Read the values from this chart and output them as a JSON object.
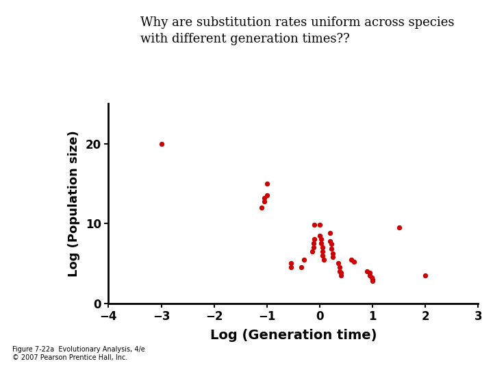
{
  "title_line1": "Why are substitution rates uniform across species",
  "title_line2": "with different generation times??",
  "xlabel": "Log (Generation time)",
  "ylabel": "Log (Population size)",
  "caption": "Figure 7-22a  Evolutionary Analysis, 4/e\n© 2007 Pearson Prentice Hall, Inc.",
  "dot_color": "#cc0000",
  "xlim": [
    -4,
    3
  ],
  "ylim": [
    0,
    25
  ],
  "xticks": [
    -4,
    -3,
    -2,
    -1,
    0,
    1,
    2,
    3
  ],
  "yticks": [
    0,
    10,
    20
  ],
  "scatter_x": [
    -3.0,
    -1.0,
    -1.0,
    -1.05,
    -1.05,
    -1.1,
    -0.55,
    -0.55,
    -0.3,
    -0.35,
    -0.1,
    -0.1,
    -0.12,
    -0.12,
    -0.14,
    0.0,
    0.0,
    0.02,
    0.02,
    0.05,
    0.05,
    0.05,
    0.08,
    0.2,
    0.2,
    0.22,
    0.22,
    0.25,
    0.25,
    0.35,
    0.38,
    0.38,
    0.4,
    0.4,
    0.6,
    0.65,
    0.9,
    0.95,
    0.95,
    0.98,
    1.0,
    1.0,
    1.5,
    2.0
  ],
  "scatter_y": [
    20.0,
    15.0,
    13.5,
    13.2,
    12.8,
    12.0,
    5.0,
    4.5,
    5.5,
    4.5,
    9.8,
    8.0,
    7.5,
    7.0,
    6.5,
    9.8,
    8.5,
    8.0,
    7.5,
    7.0,
    6.5,
    6.0,
    5.5,
    8.8,
    7.8,
    7.4,
    6.8,
    6.2,
    5.8,
    5.0,
    4.5,
    4.0,
    3.8,
    3.5,
    5.5,
    5.2,
    4.0,
    3.8,
    3.5,
    3.2,
    3.0,
    2.8,
    9.5,
    3.5
  ],
  "title_fontsize": 13,
  "xlabel_fontsize": 14,
  "ylabel_fontsize": 13,
  "tick_fontsize": 12,
  "caption_fontsize": 7
}
